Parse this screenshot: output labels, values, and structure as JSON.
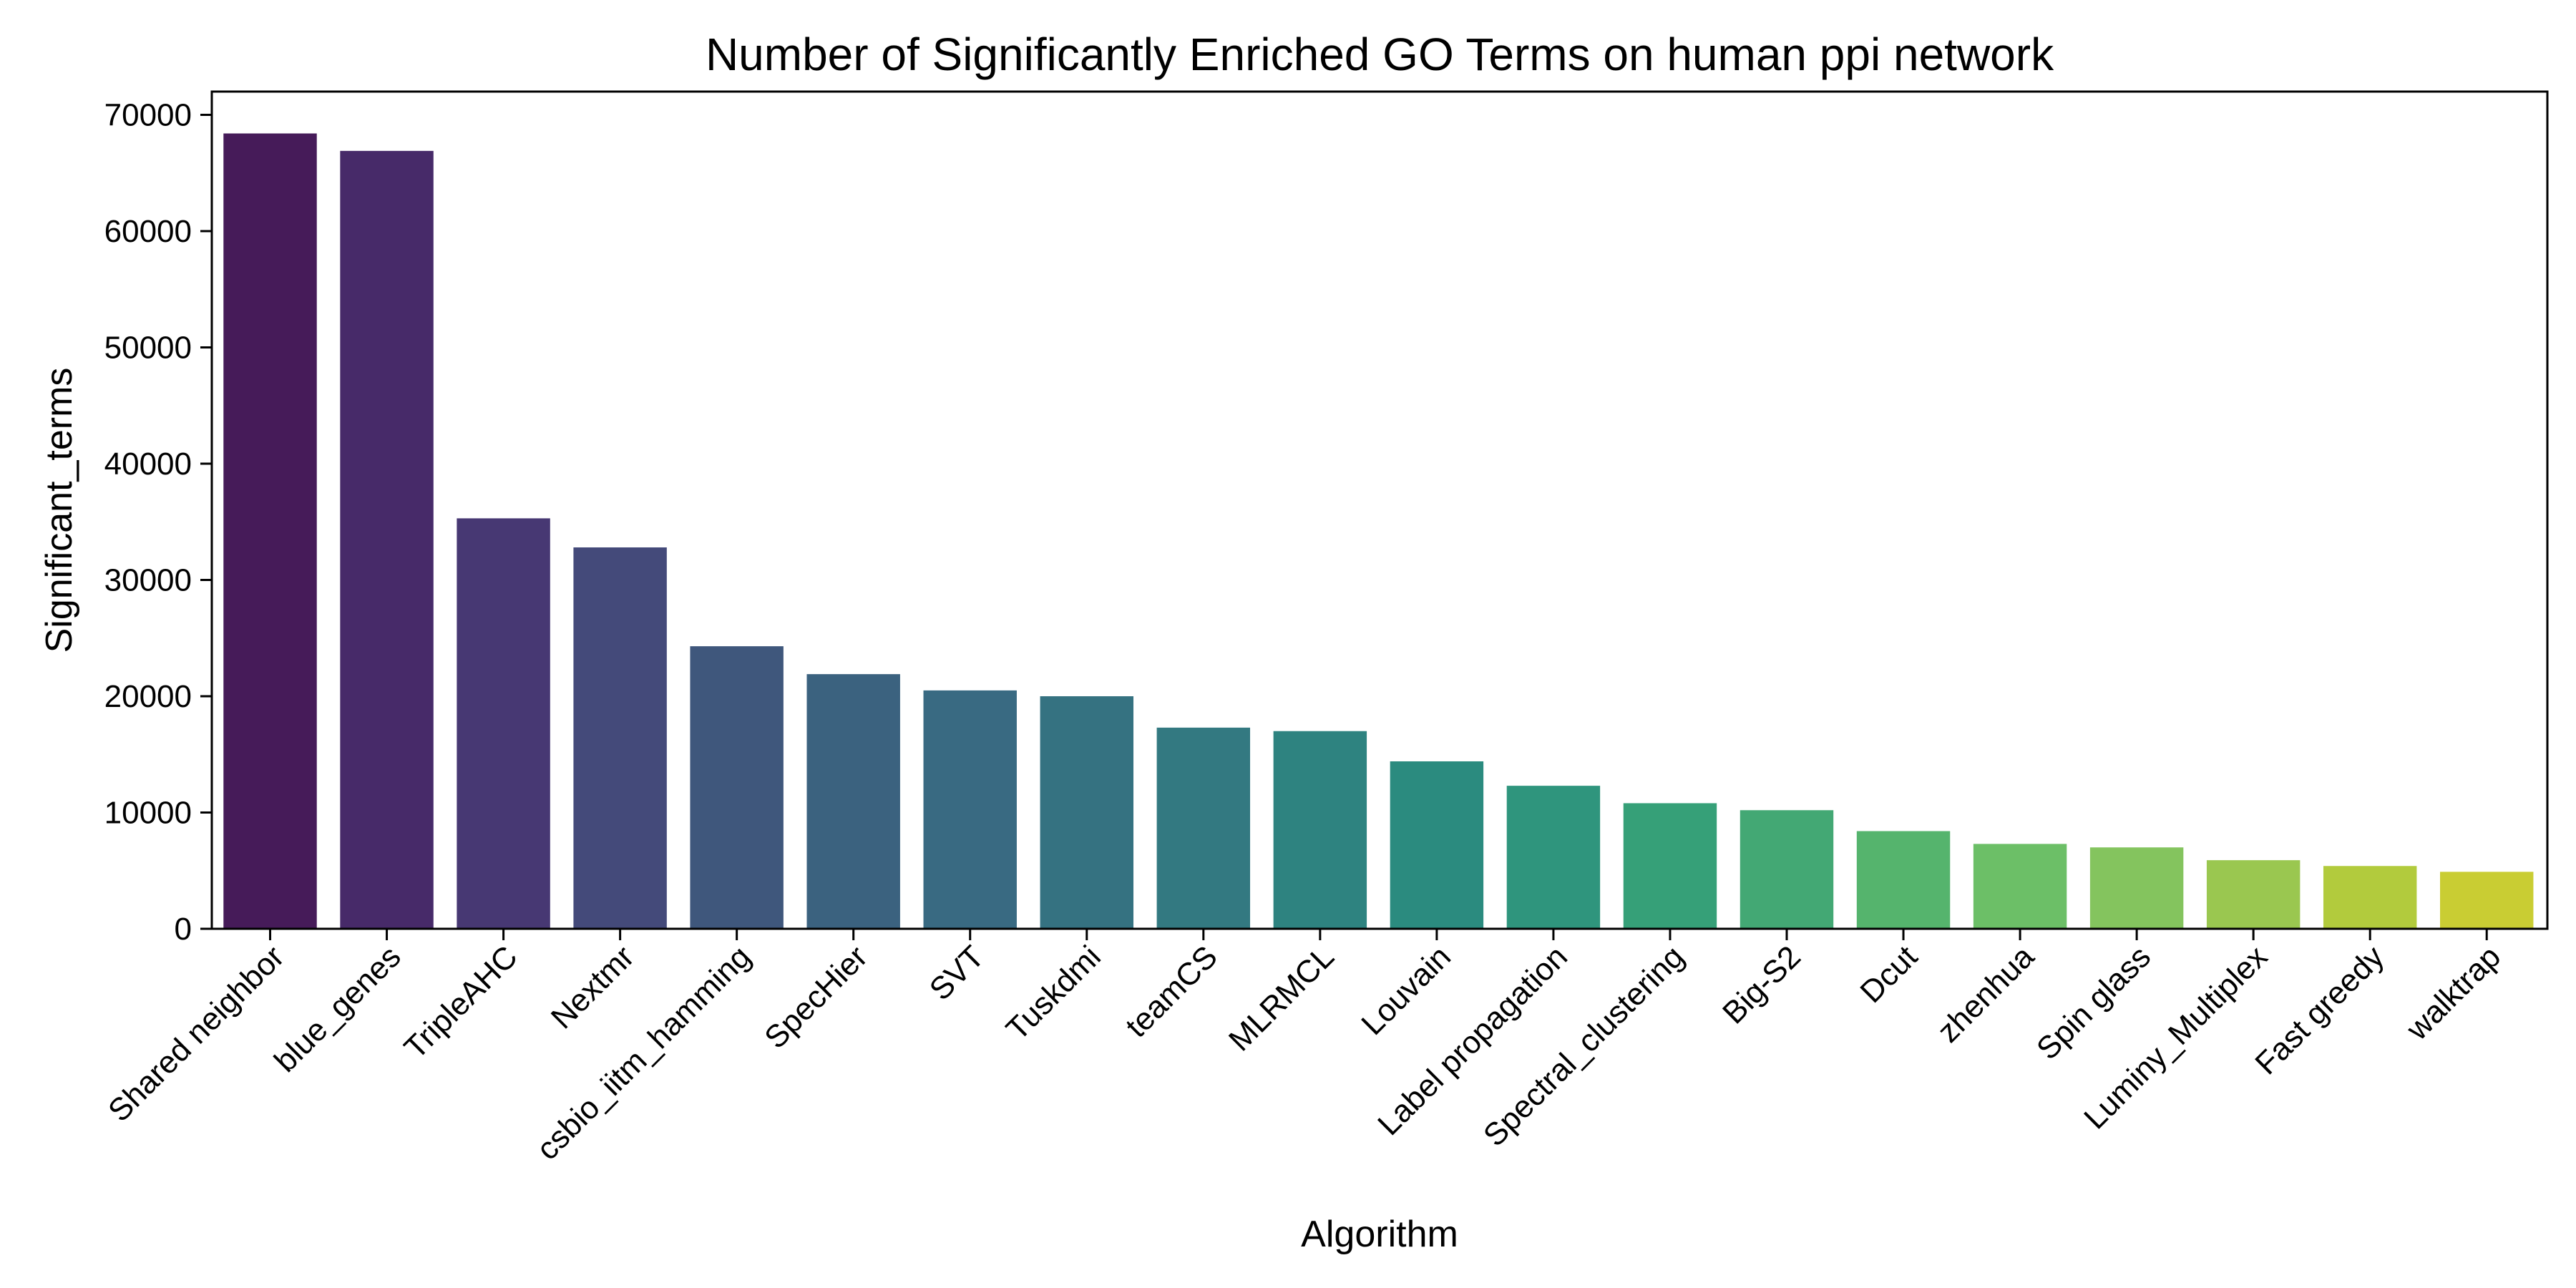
{
  "chart_data": {
    "type": "bar",
    "title": "Number of Significantly Enriched GO Terms on human ppi network",
    "xlabel": "Algorithm",
    "ylabel": "Significant_terms",
    "categories": [
      "Shared neighbor",
      "blue_genes",
      "TripleAHC",
      "Nextmr",
      "csbio_iitm_hamming",
      "SpecHier",
      "SVT",
      "Tuskdmi",
      "teamCS",
      "MLRMCL",
      "Louvain",
      "Label propagation",
      "Spectral_clustering",
      "Big-S2",
      "Dcut",
      "zhenhua",
      "Spin glass",
      "Luminy_Multiplex",
      "Fast greedy",
      "walktrap"
    ],
    "values": [
      68400,
      66900,
      35300,
      32800,
      24300,
      21900,
      20500,
      20000,
      17300,
      17000,
      14400,
      12300,
      10800,
      10200,
      8400,
      7300,
      7000,
      5900,
      5400,
      4900
    ],
    "colors": [
      "#461b59",
      "#472a69",
      "#473873",
      "#444a7a",
      "#3f577c",
      "#3b627f",
      "#396a82",
      "#357281",
      "#337981",
      "#2e8380",
      "#2b8b7f",
      "#2f957d",
      "#36a078",
      "#43a874",
      "#55b46d",
      "#6cbf67",
      "#84c45e",
      "#9ac750",
      "#b2cb3d",
      "#c9cd33"
    ],
    "ylim": [
      0,
      72000
    ],
    "yticks": [
      0,
      10000,
      20000,
      30000,
      40000,
      50000,
      60000,
      70000
    ],
    "grid": false,
    "legend": "none"
  }
}
